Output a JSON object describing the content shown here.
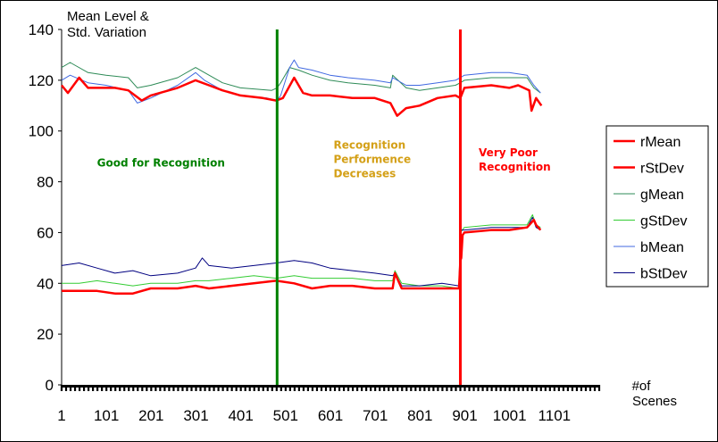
{
  "chart_data": {
    "type": "line",
    "ytitle_lines": [
      "Mean Level &",
      "Std. Variation"
    ],
    "xtitle_lines": [
      "#of",
      "Scenes"
    ],
    "xlim": [
      1,
      1201
    ],
    "ylim": [
      0,
      140
    ],
    "yticks": [
      0,
      20,
      40,
      60,
      80,
      100,
      120,
      140
    ],
    "xticks": [
      1,
      101,
      201,
      301,
      401,
      501,
      601,
      701,
      801,
      901,
      1001,
      1101
    ],
    "grid": false,
    "legend_position": "right",
    "vlines": [
      {
        "x": 482,
        "color": "#008000"
      },
      {
        "x": 891,
        "color": "#ff0000"
      }
    ],
    "annotations": [
      {
        "lines": [
          "Good for Recognition"
        ],
        "x": 80,
        "y": 86,
        "color": "#008000"
      },
      {
        "lines": [
          "Recognition",
          "Performence",
          "Decreases"
        ],
        "x": 608,
        "y": 93,
        "color": "#d4a017"
      },
      {
        "lines": [
          "Very Poor",
          "Recognition"
        ],
        "x": 932,
        "y": 90,
        "color": "#ff0000"
      }
    ],
    "series": [
      {
        "name": "rMean",
        "color": "#ff0000",
        "width": 2.5,
        "x": [
          1,
          15,
          40,
          60,
          120,
          150,
          180,
          200,
          260,
          300,
          330,
          360,
          400,
          450,
          480,
          495,
          520,
          540,
          560,
          600,
          650,
          700,
          735,
          750,
          770,
          800,
          840,
          880,
          891,
          900,
          960,
          1000,
          1020,
          1045,
          1050,
          1060,
          1072
        ],
        "y": [
          118,
          115,
          121,
          117,
          117,
          116,
          112,
          114,
          117,
          120,
          118,
          116,
          114,
          113,
          112,
          113,
          121,
          115,
          114,
          114,
          113,
          113,
          111,
          106,
          109,
          110,
          113,
          114,
          113,
          117,
          118,
          117,
          118,
          116,
          108,
          113,
          110
        ]
      },
      {
        "name": "rStDev",
        "color": "#ff0000",
        "width": 2.5,
        "x": [
          1,
          40,
          80,
          120,
          160,
          200,
          260,
          300,
          330,
          380,
          430,
          480,
          520,
          560,
          600,
          650,
          700,
          740,
          745,
          760,
          800,
          850,
          888,
          891,
          893,
          896,
          900,
          960,
          1000,
          1040,
          1055,
          1060,
          1070
        ],
        "y": [
          37,
          37,
          37,
          36,
          36,
          38,
          38,
          39,
          38,
          39,
          40,
          41,
          40,
          38,
          39,
          39,
          38,
          38,
          44,
          38,
          38,
          38,
          38,
          49,
          50,
          59,
          60,
          61,
          61,
          62,
          65,
          63,
          61
        ]
      },
      {
        "name": "gMean",
        "color": "#2e8b57",
        "width": 1,
        "x": [
          1,
          20,
          60,
          100,
          150,
          170,
          200,
          260,
          300,
          320,
          360,
          400,
          470,
          482,
          490,
          510,
          530,
          560,
          600,
          640,
          700,
          735,
          740,
          770,
          800,
          840,
          880,
          891,
          900,
          960,
          1000,
          1040,
          1055,
          1070
        ],
        "y": [
          125,
          127,
          123,
          122,
          121,
          117,
          118,
          121,
          125,
          123,
          119,
          117,
          116,
          117,
          119,
          125,
          124,
          122,
          120,
          119,
          118,
          117,
          122,
          117,
          116,
          117,
          118,
          119,
          120,
          121,
          121,
          121,
          117,
          115
        ]
      },
      {
        "name": "gStDev",
        "color": "#33cc33",
        "width": 1,
        "x": [
          1,
          40,
          80,
          120,
          160,
          200,
          260,
          300,
          330,
          380,
          430,
          480,
          520,
          560,
          600,
          650,
          700,
          740,
          745,
          760,
          800,
          850,
          888,
          891,
          900,
          960,
          1000,
          1040,
          1052,
          1060,
          1070
        ],
        "y": [
          40,
          40,
          41,
          40,
          39,
          40,
          40,
          41,
          41,
          42,
          43,
          42,
          43,
          42,
          42,
          42,
          41,
          41,
          45,
          40,
          39,
          39,
          38,
          60,
          62,
          63,
          63,
          63,
          67,
          63,
          62
        ]
      },
      {
        "name": "bMean",
        "color": "#4169e1",
        "width": 1,
        "x": [
          1,
          20,
          60,
          100,
          150,
          170,
          200,
          260,
          300,
          320,
          360,
          400,
          460,
          482,
          490,
          510,
          520,
          530,
          560,
          600,
          640,
          700,
          735,
          740,
          770,
          800,
          840,
          880,
          891,
          900,
          960,
          1000,
          1040,
          1055,
          1070
        ],
        "y": [
          120,
          122,
          119,
          118,
          116,
          111,
          113,
          118,
          123,
          120,
          116,
          114,
          113,
          112,
          114,
          125,
          128,
          125,
          124,
          122,
          121,
          120,
          119,
          121,
          118,
          118,
          119,
          120,
          121,
          122,
          123,
          123,
          122,
          118,
          115
        ]
      },
      {
        "name": "bStDev",
        "color": "#000080",
        "width": 1,
        "x": [
          1,
          40,
          80,
          120,
          160,
          200,
          260,
          300,
          315,
          330,
          380,
          430,
          480,
          520,
          560,
          600,
          650,
          700,
          740,
          745,
          760,
          800,
          850,
          888,
          891,
          900,
          960,
          1000,
          1040,
          1052,
          1060,
          1070
        ],
        "y": [
          47,
          48,
          46,
          44,
          45,
          43,
          44,
          46,
          50,
          47,
          46,
          47,
          48,
          49,
          48,
          46,
          45,
          44,
          43,
          44,
          39,
          39,
          40,
          39,
          61,
          61,
          62,
          62,
          62,
          66,
          62,
          61
        ]
      }
    ]
  }
}
